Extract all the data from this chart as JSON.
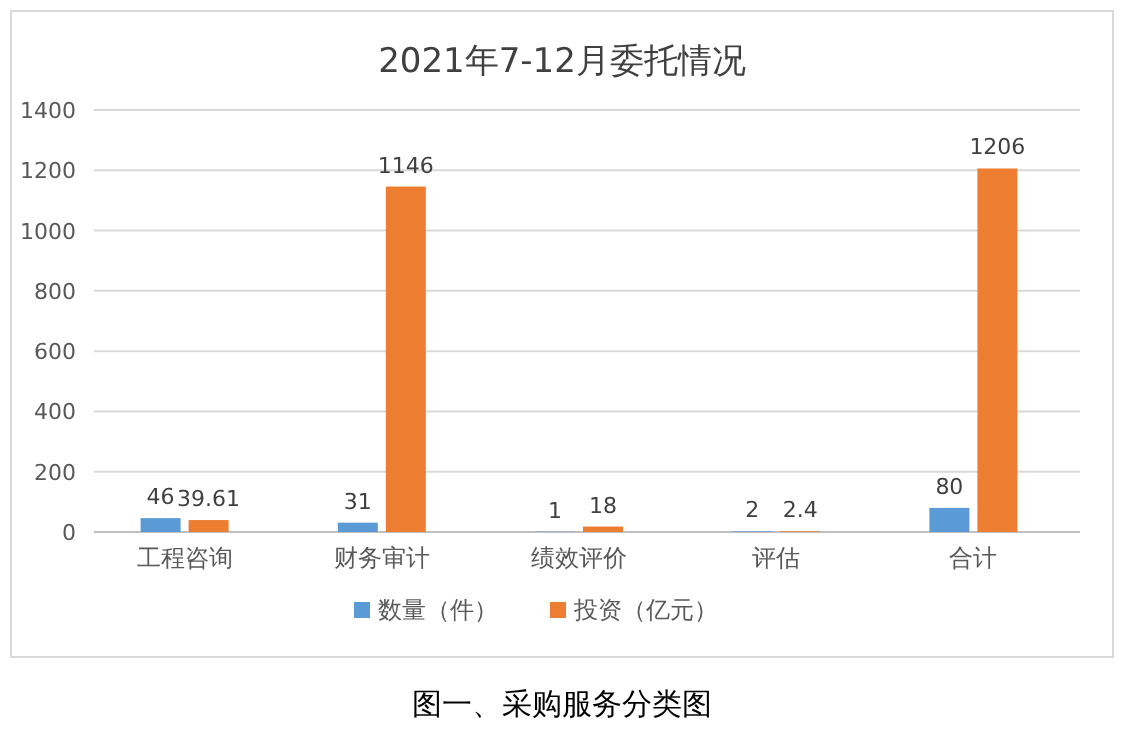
{
  "chart_data": {
    "type": "bar",
    "title": "2021年7-12月委托情况",
    "categories": [
      "工程咨询",
      "财务审计",
      "绩效评价",
      "评估",
      "合计"
    ],
    "series": [
      {
        "name": "数量（件）",
        "color": "#5b9bd5",
        "values": [
          46,
          31,
          1,
          2,
          80
        ]
      },
      {
        "name": "投资（亿元）",
        "color": "#ed7d31",
        "values": [
          39.61,
          1146,
          18,
          2.4,
          1206
        ]
      }
    ],
    "ylim": [
      0,
      1400
    ],
    "yticks": [
      0,
      200,
      400,
      600,
      800,
      1000,
      1200,
      1400
    ],
    "grid": "y",
    "legend": "bottom",
    "data_labels": true,
    "annotations": [
      "图一、采购服务分类图"
    ]
  }
}
